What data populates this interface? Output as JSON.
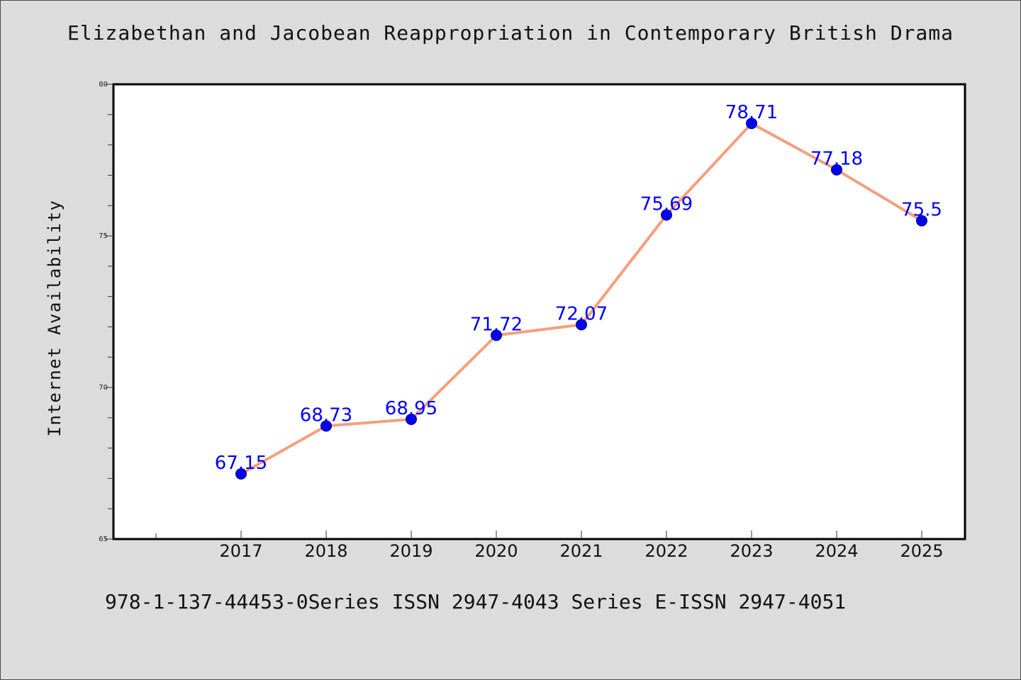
{
  "chart_data": {
    "type": "line",
    "title": "Elizabethan and Jacobean Reappropriation in Contemporary British Drama",
    "xlabel": "",
    "ylabel": "Internet Availability",
    "categories": [
      "2017",
      "2018",
      "2019",
      "2020",
      "2021",
      "2022",
      "2023",
      "2024",
      "2025"
    ],
    "series": [
      {
        "values": [
          67.15,
          68.73,
          68.95,
          71.72,
          72.07,
          75.69,
          78.71,
          77.18,
          75.5
        ],
        "data_labels": [
          "67.15",
          "68.73",
          "68.95",
          "71.72",
          "72.07",
          "75.69",
          "78.71",
          "77.18",
          "75.5"
        ]
      }
    ],
    "ylim": [
      65,
      80
    ],
    "y_ticks": [
      65,
      70,
      75,
      80
    ],
    "y_tick_labels": [
      "65",
      "70",
      "75",
      "80"
    ],
    "grid": false,
    "colors": {
      "line": "#f4a07c",
      "marker": "#0000ee",
      "marker_edge": "#00008b",
      "data_label": "#0000ff",
      "plot_background": "#ffffff",
      "page_background": "#dcdcdc"
    }
  },
  "footer": {
    "text": "978-1-137-44453-0Series ISSN 2947-4043 Series E-ISSN 2947-4051"
  }
}
